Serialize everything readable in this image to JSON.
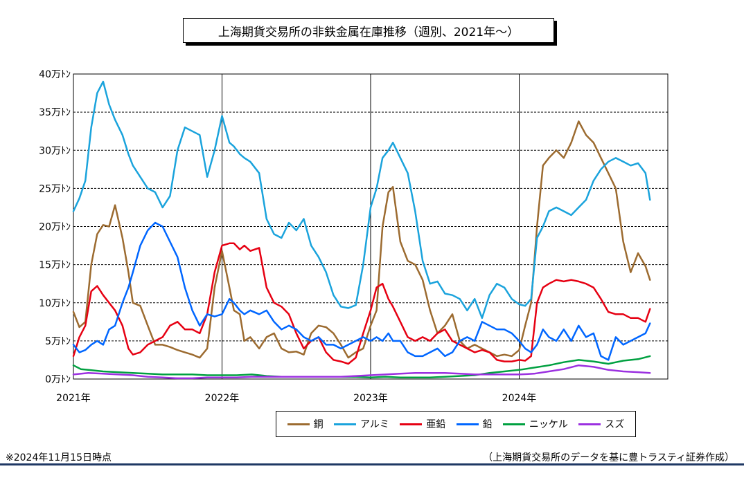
{
  "chart_data": {
    "type": "line",
    "title": "上海期貨交易所の非鉄金属在庫推移（週別、2021年～）",
    "xlabel": "",
    "ylabel": "",
    "x_ticks": [
      "2021年",
      "2022年",
      "2023年",
      "2024年"
    ],
    "y_ticks": [
      "0万ﾄﾝ",
      "5万ﾄﾝ",
      "10万ﾄﾝ",
      "15万ﾄﾝ",
      "20万ﾄﾝ",
      "25万ﾄﾝ",
      "30万ﾄﾝ",
      "35万ﾄﾝ",
      "40万ﾄﾝ"
    ],
    "xlim": [
      2021.0,
      2025.0
    ],
    "ylim": [
      0,
      40
    ],
    "y_unit": "万トン",
    "grid": "dashed horizontal, solid vertical at year starts",
    "legend_position": "bottom",
    "series": [
      {
        "name": "銅",
        "color": "#9c6b30",
        "x": [
          2021.0,
          2021.04,
          2021.08,
          2021.12,
          2021.16,
          2021.2,
          2021.24,
          2021.28,
          2021.33,
          2021.37,
          2021.4,
          2021.45,
          2021.5,
          2021.55,
          2021.6,
          2021.65,
          2021.7,
          2021.75,
          2021.8,
          2021.85,
          2021.9,
          2021.95,
          2022.0,
          2022.05,
          2022.08,
          2022.12,
          2022.15,
          2022.19,
          2022.25,
          2022.3,
          2022.35,
          2022.4,
          2022.45,
          2022.5,
          2022.55,
          2022.6,
          2022.65,
          2022.7,
          2022.75,
          2022.8,
          2022.85,
          2022.9,
          2022.95,
          2023.0,
          2023.04,
          2023.08,
          2023.12,
          2023.15,
          2023.2,
          2023.25,
          2023.3,
          2023.35,
          2023.4,
          2023.45,
          2023.5,
          2023.55,
          2023.6,
          2023.65,
          2023.7,
          2023.75,
          2023.8,
          2023.85,
          2023.9,
          2023.95,
          2024.0,
          2024.04,
          2024.08,
          2024.12,
          2024.16,
          2024.2,
          2024.25,
          2024.3,
          2024.35,
          2024.4,
          2024.45,
          2024.5,
          2024.55,
          2024.6,
          2024.65,
          2024.7,
          2024.75,
          2024.8,
          2024.85,
          2024.88
        ],
        "values": [
          8.8,
          6.8,
          7.5,
          15.0,
          19.0,
          20.2,
          20.0,
          22.8,
          18.5,
          14.0,
          10.0,
          9.6,
          7.0,
          4.5,
          4.5,
          4.2,
          3.8,
          3.5,
          3.2,
          2.8,
          4.0,
          12.0,
          16.8,
          12.0,
          9.0,
          8.5,
          5.0,
          5.5,
          4.0,
          5.5,
          6.0,
          4.0,
          3.5,
          3.6,
          3.2,
          6.0,
          7.0,
          6.8,
          6.0,
          4.5,
          2.8,
          3.5,
          4.0,
          7.0,
          9.0,
          20.0,
          24.5,
          25.2,
          18.0,
          15.5,
          15.0,
          13.0,
          9.0,
          6.0,
          7.0,
          8.5,
          5.0,
          4.0,
          4.5,
          4.0,
          3.5,
          3.0,
          3.2,
          3.0,
          3.8,
          7.0,
          10.0,
          20.0,
          28.0,
          29.0,
          30.0,
          29.0,
          31.0,
          33.8,
          32.0,
          31.0,
          29.0,
          27.0,
          25.0,
          18.0,
          14.0,
          16.5,
          14.8,
          13.0
        ]
      },
      {
        "name": "アルミ",
        "color": "#1aa3dc",
        "x": [
          2021.0,
          2021.04,
          2021.08,
          2021.12,
          2021.16,
          2021.2,
          2021.24,
          2021.28,
          2021.33,
          2021.37,
          2021.4,
          2021.45,
          2021.5,
          2021.55,
          2021.6,
          2021.65,
          2021.7,
          2021.75,
          2021.8,
          2021.85,
          2021.9,
          2021.95,
          2022.0,
          2022.05,
          2022.08,
          2022.12,
          2022.15,
          2022.19,
          2022.25,
          2022.3,
          2022.35,
          2022.4,
          2022.45,
          2022.5,
          2022.55,
          2022.6,
          2022.65,
          2022.7,
          2022.75,
          2022.8,
          2022.85,
          2022.9,
          2022.95,
          2023.0,
          2023.04,
          2023.08,
          2023.12,
          2023.15,
          2023.2,
          2023.25,
          2023.3,
          2023.35,
          2023.4,
          2023.45,
          2023.5,
          2023.55,
          2023.6,
          2023.65,
          2023.7,
          2023.75,
          2023.8,
          2023.85,
          2023.9,
          2023.95,
          2024.0,
          2024.04,
          2024.08,
          2024.12,
          2024.16,
          2024.2,
          2024.25,
          2024.3,
          2024.35,
          2024.4,
          2024.45,
          2024.5,
          2024.55,
          2024.6,
          2024.65,
          2024.7,
          2024.75,
          2024.8,
          2024.85,
          2024.88
        ],
        "values": [
          22.0,
          23.7,
          26.0,
          33.0,
          37.5,
          39.0,
          36.0,
          34.0,
          32.0,
          29.5,
          28.0,
          26.5,
          25.0,
          24.5,
          22.5,
          24.0,
          30.0,
          33.0,
          32.5,
          32.0,
          26.5,
          30.0,
          34.5,
          31.0,
          30.5,
          29.5,
          29.0,
          28.5,
          27.0,
          21.0,
          19.0,
          18.5,
          20.5,
          19.5,
          21.0,
          17.5,
          16.0,
          14.0,
          11.0,
          9.5,
          9.3,
          9.7,
          15.0,
          22.5,
          25.0,
          29.0,
          30.0,
          31.0,
          29.0,
          27.0,
          22.0,
          15.5,
          12.5,
          12.8,
          11.2,
          11.0,
          10.5,
          9.0,
          10.5,
          8.0,
          11.0,
          12.5,
          12.0,
          10.5,
          9.8,
          9.6,
          10.5,
          18.5,
          20.0,
          22.0,
          22.5,
          22.0,
          21.5,
          22.5,
          23.5,
          26.0,
          27.5,
          28.5,
          29.0,
          28.5,
          28.0,
          28.3,
          27.0,
          23.5
        ]
      },
      {
        "name": "亜鉛",
        "color": "#e60012",
        "x": [
          2021.0,
          2021.04,
          2021.08,
          2021.12,
          2021.16,
          2021.2,
          2021.24,
          2021.28,
          2021.33,
          2021.37,
          2021.4,
          2021.45,
          2021.5,
          2021.55,
          2021.6,
          2021.65,
          2021.7,
          2021.75,
          2021.8,
          2021.85,
          2021.9,
          2021.95,
          2022.0,
          2022.05,
          2022.08,
          2022.12,
          2022.15,
          2022.19,
          2022.25,
          2022.3,
          2022.35,
          2022.4,
          2022.45,
          2022.5,
          2022.55,
          2022.6,
          2022.65,
          2022.7,
          2022.75,
          2022.8,
          2022.85,
          2022.9,
          2022.95,
          2023.0,
          2023.04,
          2023.08,
          2023.12,
          2023.15,
          2023.2,
          2023.25,
          2023.3,
          2023.35,
          2023.4,
          2023.45,
          2023.5,
          2023.55,
          2023.6,
          2023.65,
          2023.7,
          2023.75,
          2023.8,
          2023.85,
          2023.9,
          2023.95,
          2024.0,
          2024.04,
          2024.08,
          2024.12,
          2024.16,
          2024.2,
          2024.25,
          2024.3,
          2024.35,
          2024.4,
          2024.45,
          2024.5,
          2024.55,
          2024.6,
          2024.65,
          2024.7,
          2024.75,
          2024.8,
          2024.85,
          2024.88
        ],
        "values": [
          3.0,
          5.5,
          7.0,
          11.5,
          12.2,
          11.0,
          10.0,
          9.0,
          7.0,
          4.0,
          3.2,
          3.5,
          4.5,
          5.0,
          5.5,
          7.0,
          7.5,
          6.5,
          6.5,
          6.0,
          8.5,
          14.0,
          17.5,
          17.8,
          17.8,
          17.0,
          17.5,
          16.8,
          17.2,
          12.0,
          10.0,
          9.5,
          8.5,
          6.0,
          4.0,
          5.0,
          5.5,
          3.5,
          2.5,
          2.3,
          2.0,
          2.8,
          6.0,
          9.0,
          12.0,
          12.5,
          10.5,
          9.5,
          7.5,
          5.5,
          5.0,
          5.5,
          5.0,
          6.0,
          6.5,
          5.0,
          4.5,
          4.0,
          3.5,
          3.8,
          3.5,
          2.5,
          2.3,
          2.3,
          2.5,
          2.4,
          3.0,
          10.0,
          12.0,
          12.5,
          13.0,
          12.8,
          13.0,
          12.8,
          12.5,
          12.0,
          10.5,
          8.8,
          8.5,
          8.5,
          8.0,
          8.0,
          7.5,
          9.2
        ]
      },
      {
        "name": "鉛",
        "color": "#0066ff",
        "x": [
          2021.0,
          2021.04,
          2021.08,
          2021.12,
          2021.16,
          2021.2,
          2021.24,
          2021.28,
          2021.33,
          2021.37,
          2021.4,
          2021.45,
          2021.5,
          2021.55,
          2021.6,
          2021.65,
          2021.7,
          2021.75,
          2021.8,
          2021.85,
          2021.9,
          2021.95,
          2022.0,
          2022.05,
          2022.08,
          2022.12,
          2022.15,
          2022.19,
          2022.25,
          2022.3,
          2022.35,
          2022.4,
          2022.45,
          2022.5,
          2022.55,
          2022.6,
          2022.65,
          2022.7,
          2022.75,
          2022.8,
          2022.85,
          2022.9,
          2022.95,
          2023.0,
          2023.04,
          2023.08,
          2023.12,
          2023.15,
          2023.2,
          2023.25,
          2023.3,
          2023.35,
          2023.4,
          2023.45,
          2023.5,
          2023.55,
          2023.6,
          2023.65,
          2023.7,
          2023.75,
          2023.8,
          2023.85,
          2023.9,
          2023.95,
          2024.0,
          2024.04,
          2024.08,
          2024.12,
          2024.16,
          2024.2,
          2024.25,
          2024.3,
          2024.35,
          2024.4,
          2024.45,
          2024.5,
          2024.55,
          2024.6,
          2024.65,
          2024.7,
          2024.75,
          2024.8,
          2024.85,
          2024.88
        ],
        "values": [
          4.5,
          3.5,
          3.8,
          4.5,
          5.0,
          4.5,
          6.5,
          7.0,
          10.0,
          12.0,
          14.0,
          17.5,
          19.5,
          20.5,
          20.0,
          18.0,
          16.0,
          12.0,
          9.0,
          7.0,
          8.5,
          8.2,
          8.5,
          10.5,
          10.0,
          9.0,
          8.5,
          9.0,
          8.5,
          9.0,
          7.5,
          6.5,
          7.0,
          6.5,
          5.5,
          5.0,
          5.5,
          4.5,
          4.5,
          4.0,
          4.5,
          5.0,
          5.5,
          5.0,
          5.5,
          5.0,
          6.0,
          5.0,
          5.0,
          3.5,
          3.0,
          3.0,
          3.5,
          4.0,
          3.0,
          3.5,
          5.0,
          5.5,
          5.0,
          7.5,
          7.0,
          6.5,
          6.5,
          6.0,
          5.0,
          4.0,
          3.5,
          4.5,
          6.5,
          5.5,
          5.0,
          6.5,
          5.0,
          7.0,
          5.5,
          6.0,
          3.0,
          2.5,
          5.5,
          4.5,
          5.0,
          5.5,
          6.0,
          7.3
        ]
      },
      {
        "name": "ニッケル",
        "color": "#00a040",
        "x": [
          2021.0,
          2021.05,
          2021.1,
          2021.2,
          2021.3,
          2021.4,
          2021.5,
          2021.6,
          2021.7,
          2021.8,
          2021.9,
          2022.0,
          2022.1,
          2022.2,
          2022.3,
          2022.4,
          2022.5,
          2022.6,
          2022.7,
          2022.8,
          2022.9,
          2023.0,
          2023.1,
          2023.2,
          2023.3,
          2023.4,
          2023.5,
          2023.6,
          2023.7,
          2023.8,
          2023.9,
          2024.0,
          2024.1,
          2024.2,
          2024.3,
          2024.4,
          2024.5,
          2024.6,
          2024.7,
          2024.8,
          2024.88
        ],
        "values": [
          1.8,
          1.3,
          1.2,
          1.0,
          0.9,
          0.8,
          0.7,
          0.6,
          0.6,
          0.6,
          0.5,
          0.5,
          0.5,
          0.6,
          0.4,
          0.3,
          0.3,
          0.3,
          0.3,
          0.3,
          0.3,
          0.2,
          0.3,
          0.2,
          0.2,
          0.2,
          0.3,
          0.4,
          0.5,
          0.8,
          1.0,
          1.2,
          1.5,
          1.8,
          2.2,
          2.5,
          2.3,
          2.0,
          2.4,
          2.6,
          3.0
        ]
      },
      {
        "name": "スズ",
        "color": "#9b30e0",
        "x": [
          2021.0,
          2021.1,
          2021.2,
          2021.3,
          2021.4,
          2021.5,
          2021.6,
          2021.7,
          2021.8,
          2021.9,
          2022.0,
          2022.1,
          2022.2,
          2022.3,
          2022.4,
          2022.5,
          2022.6,
          2022.7,
          2022.8,
          2022.9,
          2023.0,
          2023.1,
          2023.2,
          2023.3,
          2023.4,
          2023.5,
          2023.6,
          2023.7,
          2023.8,
          2023.9,
          2024.0,
          2024.1,
          2024.2,
          2024.3,
          2024.4,
          2024.5,
          2024.6,
          2024.7,
          2024.8,
          2024.88
        ],
        "values": [
          0.6,
          0.8,
          0.7,
          0.6,
          0.5,
          0.3,
          0.2,
          0.1,
          0.1,
          0.2,
          0.2,
          0.2,
          0.3,
          0.3,
          0.3,
          0.3,
          0.3,
          0.3,
          0.3,
          0.4,
          0.5,
          0.6,
          0.7,
          0.8,
          0.8,
          0.8,
          0.7,
          0.6,
          0.6,
          0.6,
          0.6,
          0.7,
          1.0,
          1.3,
          1.8,
          1.6,
          1.2,
          1.0,
          0.9,
          0.8
        ]
      }
    ]
  },
  "note": "※2024年11月15日時点",
  "source": "（上海期貨交易所のデータを基に豊トラスティ証券作成）"
}
